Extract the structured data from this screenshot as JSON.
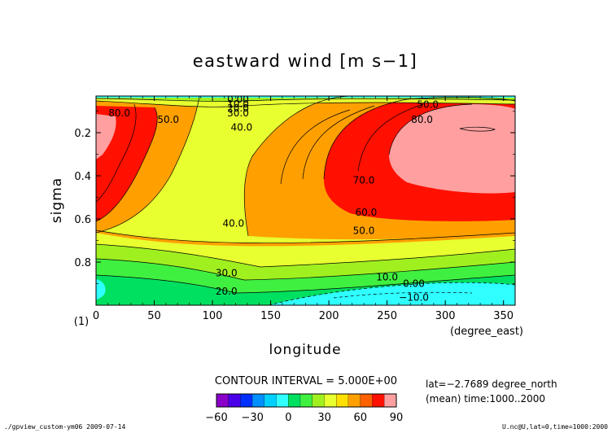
{
  "chart_data": {
    "type": "heatmap",
    "title": "eastward wind [m s−1]",
    "xlabel": "longitude",
    "x_units": "(degree_east)",
    "ylabel": "sigma",
    "y_units": "(1)",
    "xlim": [
      0,
      360
    ],
    "ylim": [
      1.0,
      0.03
    ],
    "y_inverted": true,
    "x_ticks": [
      "0",
      "50",
      "100",
      "150",
      "200",
      "250",
      "300",
      "350"
    ],
    "y_ticks": [
      "0.2",
      "0.4",
      "0.6",
      "0.8"
    ],
    "contour_interval_text": "CONTOUR INTERVAL = 5.000E+00",
    "info_lines": [
      "lat=−2.7689 degree_north",
      "(mean) time:1000..2000"
    ],
    "footer_left": "./gpview_custom-ym06  2009-07-14",
    "footer_right": "U.nc@U,lat=0,time=1000:2000",
    "colorbar": {
      "tick_labels": [
        "−60",
        "−30",
        "0",
        "30",
        "60",
        "90"
      ],
      "levels": [
        -60,
        -50,
        -40,
        -30,
        -20,
        -10,
        0,
        10,
        20,
        30,
        40,
        50,
        60,
        70,
        80,
        90
      ],
      "colors": [
        "#8a00c8",
        "#4a00e8",
        "#0030ff",
        "#0090ff",
        "#00d0ff",
        "#30ffff",
        "#00e060",
        "#40f040",
        "#a0f020",
        "#e8ff30",
        "#ffe000",
        "#ffa000",
        "#ff6000",
        "#ff1000",
        "#ff9fa0"
      ]
    },
    "contour_labels": [
      {
        "text": "0.00",
        "lon": 122,
        "sigma": 0.046
      },
      {
        "text": "10.0",
        "lon": 122,
        "sigma": 0.068
      },
      {
        "text": "20.0",
        "lon": 122,
        "sigma": 0.087
      },
      {
        "text": "30.0",
        "lon": 122,
        "sigma": 0.11
      },
      {
        "text": "40.0",
        "lon": 125,
        "sigma": 0.175
      },
      {
        "text": "80.0",
        "lon": 20,
        "sigma": 0.11
      },
      {
        "text": "50.0",
        "lon": 62,
        "sigma": 0.14
      },
      {
        "text": "50.0",
        "lon": 285,
        "sigma": 0.07
      },
      {
        "text": "80.0",
        "lon": 280,
        "sigma": 0.14
      },
      {
        "text": "70.0",
        "lon": 230,
        "sigma": 0.42
      },
      {
        "text": "60.0",
        "lon": 232,
        "sigma": 0.57
      },
      {
        "text": "50.0",
        "lon": 230,
        "sigma": 0.655
      },
      {
        "text": "40.0",
        "lon": 118,
        "sigma": 0.62
      },
      {
        "text": "30.0",
        "lon": 112,
        "sigma": 0.85
      },
      {
        "text": "20.0",
        "lon": 112,
        "sigma": 0.935
      },
      {
        "text": "10.0",
        "lon": 250,
        "sigma": 0.87
      },
      {
        "text": "0.00",
        "lon": 273,
        "sigma": 0.9
      },
      {
        "text": "−10.0",
        "lon": 273,
        "sigma": 0.965
      }
    ]
  }
}
